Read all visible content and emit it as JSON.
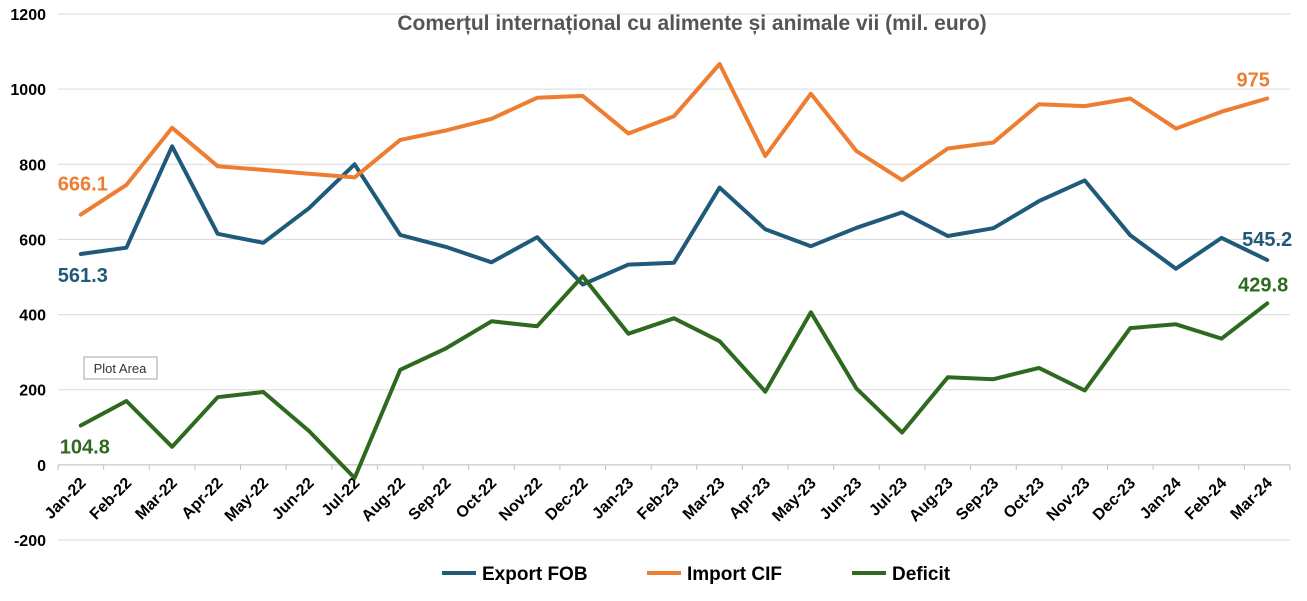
{
  "chart_data": {
    "type": "line",
    "title": "Comerțul internațional cu alimente și animale vii (mil. euro)",
    "xlabel": "",
    "ylabel": "",
    "ylim": [
      -200,
      1200
    ],
    "yticks": [
      -200,
      0,
      200,
      400,
      600,
      800,
      1000,
      1200
    ],
    "grid": true,
    "legend": "bottom",
    "categories": [
      "Jan-22",
      "Feb-22",
      "Mar-22",
      "Apr-22",
      "May-22",
      "Jun-22",
      "Jul-22",
      "Aug-22",
      "Sep-22",
      "Oct-22",
      "Nov-22",
      "Dec-22",
      "Jan-23",
      "Feb-23",
      "Mar-23",
      "Apr-23",
      "May-23",
      "Jun-23",
      "Jul-23",
      "Aug-23",
      "Sep-23",
      "Oct-23",
      "Nov-23",
      "Dec-23",
      "Jan-24",
      "Feb-24",
      "Mar-24"
    ],
    "series": [
      {
        "name": "Export FOB",
        "color": "#1f5a7a",
        "values": [
          561.3,
          578,
          848,
          615,
          591,
          683,
          800,
          612,
          580,
          539,
          606,
          480,
          533,
          538,
          738,
          627,
          582,
          631,
          672,
          609,
          630,
          702,
          757,
          611,
          522,
          604,
          545.2
        ]
      },
      {
        "name": "Import CIF",
        "color": "#ed7d31",
        "values": [
          666.1,
          745,
          897,
          795,
          785,
          775,
          765,
          865,
          890,
          921,
          977,
          982,
          882,
          928,
          1067,
          822,
          988,
          835,
          758,
          842,
          858,
          960,
          955,
          975,
          895,
          940,
          975
        ]
      },
      {
        "name": "Deficit",
        "color": "#2d6a1f",
        "values": [
          104.8,
          170,
          48,
          180,
          194,
          90,
          -35,
          253,
          310,
          382,
          369,
          502,
          349,
          390,
          329,
          195,
          406,
          203,
          86,
          233,
          228,
          258,
          198,
          364,
          374,
          336,
          429.8
        ]
      }
    ],
    "data_labels": [
      {
        "series": 0,
        "index": 0,
        "text": "561.3"
      },
      {
        "series": 0,
        "index": 26,
        "text": "545.2"
      },
      {
        "series": 1,
        "index": 0,
        "text": "666.1"
      },
      {
        "series": 1,
        "index": 26,
        "text": "975"
      },
      {
        "series": 2,
        "index": 0,
        "text": "104.8"
      },
      {
        "series": 2,
        "index": 26,
        "text": "429.8"
      }
    ],
    "tooltip": "Plot Area"
  }
}
